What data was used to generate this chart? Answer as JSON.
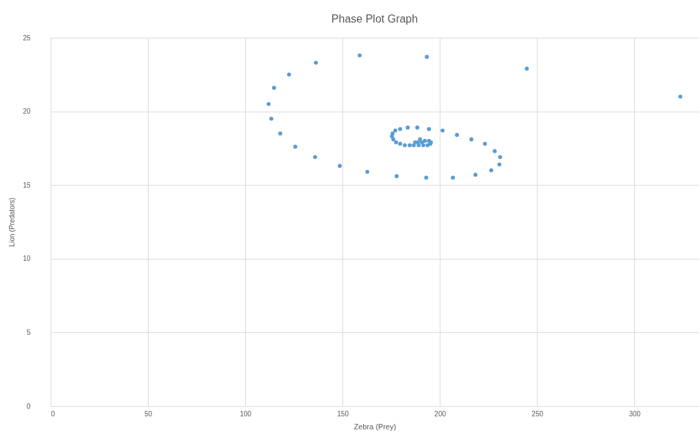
{
  "chart_data": {
    "type": "scatter",
    "title": "Phase Plot Graph",
    "xlabel": "Zebra (Prey)",
    "ylabel": "Lion (Predators)",
    "x": [
      323.6,
      244.7,
      193.3,
      158.8,
      136.3,
      122.5,
      114.8,
      112.0,
      113.4,
      118.0,
      125.7,
      135.9,
      148.6,
      162.7,
      177.8,
      193.0,
      206.7,
      218.3,
      226.4,
      230.6,
      231.0,
      228.2,
      223.2,
      216.2,
      208.8,
      201.4,
      194.4,
      188.4,
      183.5,
      179.6,
      177.1,
      175.7,
      175.4,
      176.1,
      177.5,
      179.6,
      182.0,
      184.5,
      186.6,
      189.1,
      191.5,
      193.7,
      195.1,
      195.4,
      194.4,
      189.8,
      187.3,
      188.7,
      190.8,
      192.3
    ],
    "series": [
      {
        "color": "#5b9bd5",
        "values": [
          21.0,
          22.9,
          23.7,
          23.8,
          23.3,
          22.5,
          21.6,
          20.5,
          19.5,
          18.5,
          17.6,
          16.9,
          16.3,
          15.9,
          15.6,
          15.5,
          15.5,
          15.7,
          16.0,
          16.4,
          16.9,
          17.3,
          17.8,
          18.1,
          18.4,
          18.7,
          18.8,
          18.9,
          18.9,
          18.8,
          18.7,
          18.5,
          18.3,
          18.1,
          17.9,
          17.8,
          17.7,
          17.7,
          17.7,
          17.7,
          17.7,
          17.7,
          17.8,
          17.9,
          18.0,
          18.1,
          17.9,
          17.9,
          17.9,
          18.0
        ]
      }
    ],
    "xlim": [
      0,
      333
    ],
    "xticks": [
      0,
      50,
      100,
      150,
      200,
      250,
      300
    ],
    "ylim": [
      0,
      25
    ],
    "yticks": [
      0,
      5,
      10,
      15,
      20,
      25
    ],
    "grid": true,
    "marker": "circle"
  }
}
